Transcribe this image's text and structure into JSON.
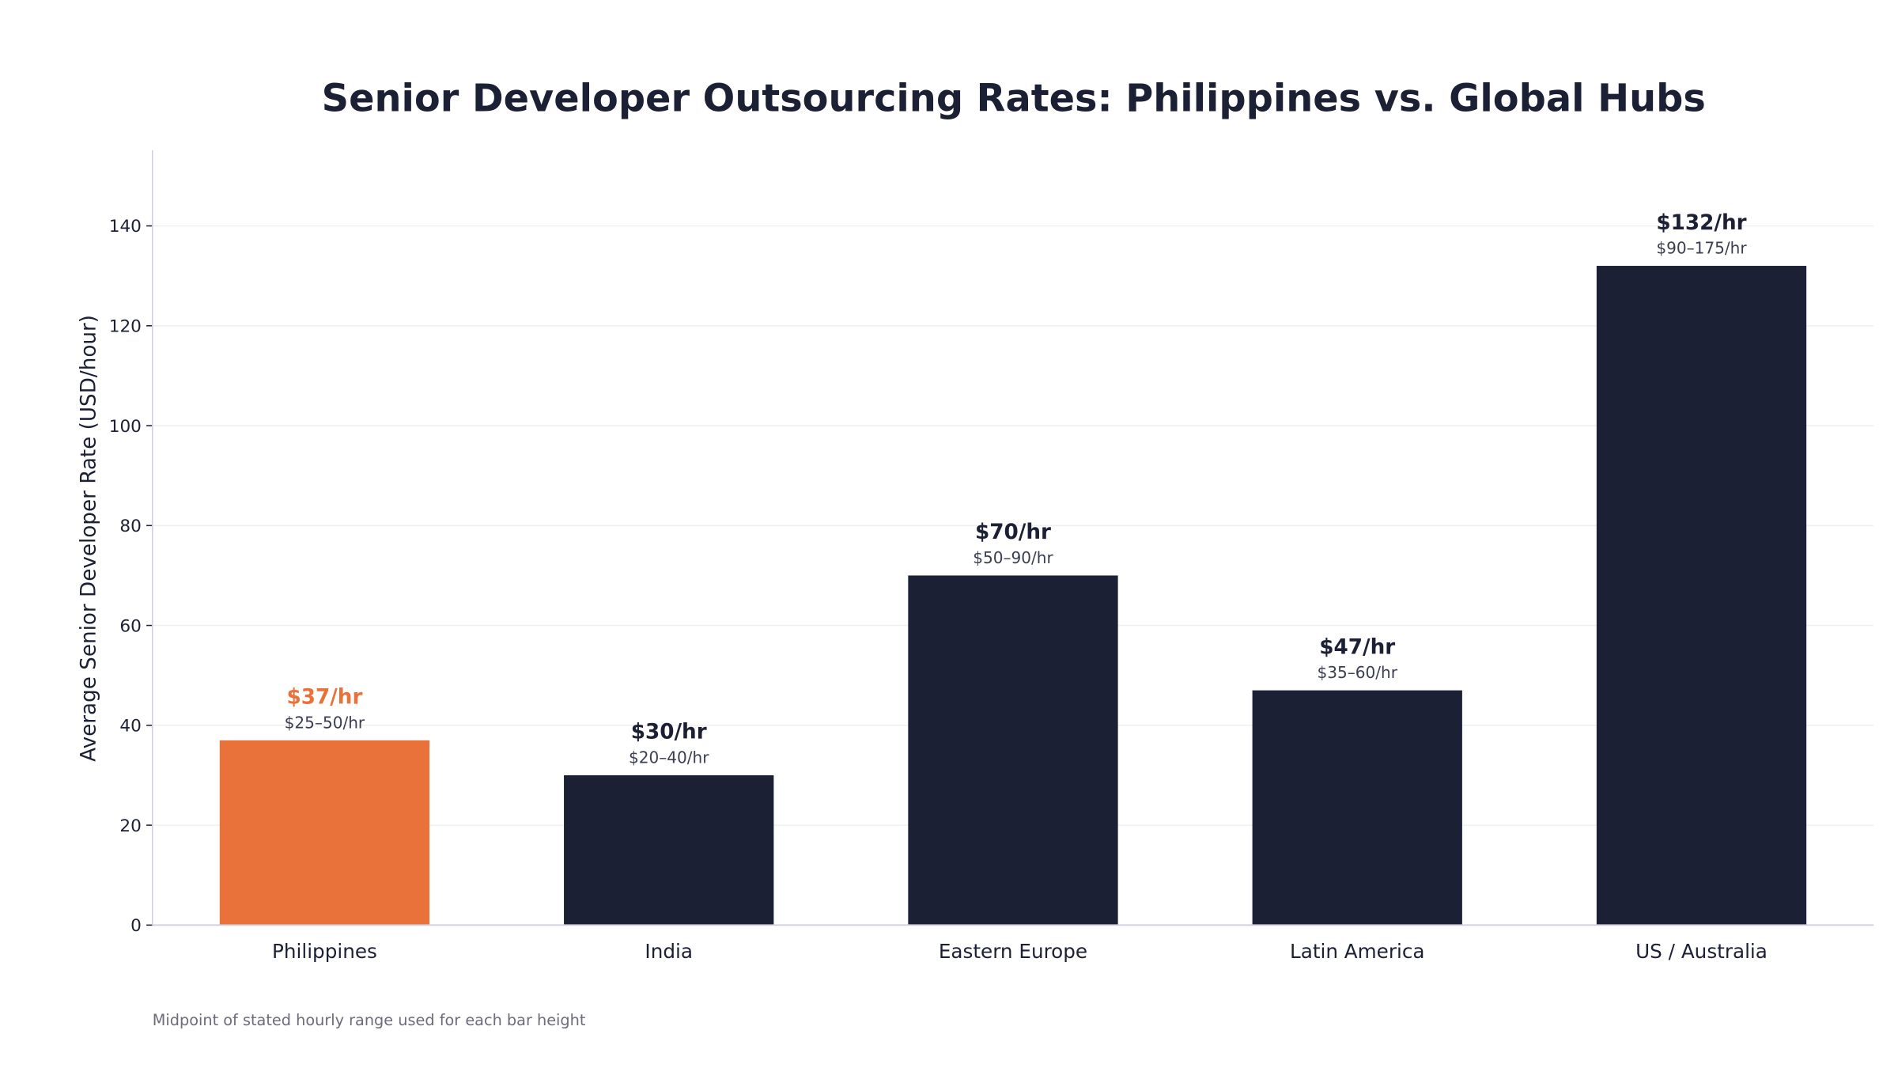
{
  "chart_data": {
    "type": "bar",
    "title": "Senior Developer Outsourcing Rates: Philippines vs. Global Hubs",
    "xlabel": "",
    "ylabel": "Average Senior Developer Rate (USD/hour)",
    "ylim": [
      0,
      155
    ],
    "yticks": [
      0,
      20,
      40,
      60,
      80,
      100,
      120,
      140
    ],
    "grid": true,
    "categories": [
      "Philippines",
      "India",
      "Eastern Europe",
      "Latin America",
      "US / Australia"
    ],
    "values": [
      37,
      30,
      70,
      47,
      132
    ],
    "value_labels": [
      "$37/hr",
      "$30/hr",
      "$70/hr",
      "$47/hr",
      "$132/hr"
    ],
    "range_labels": [
      "$25–50/hr",
      "$20–40/hr",
      "$50–90/hr",
      "$35–60/hr",
      "$90–175/hr"
    ],
    "highlight_index": 0,
    "footnote": "Midpoint of stated hourly range used for each bar height",
    "colors": {
      "highlight": "#E8723A",
      "default": "#1C2035",
      "grid": "#F0F0F3",
      "axis": "#D0D0DC"
    }
  }
}
